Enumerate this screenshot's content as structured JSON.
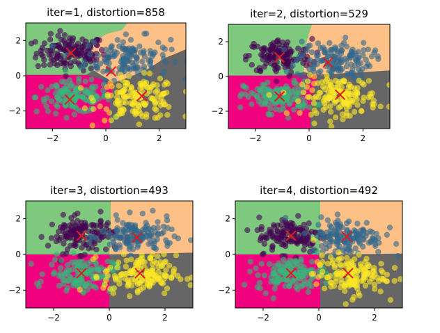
{
  "region_colors": {
    "green": "#7fc97f",
    "orange": "#fdc086",
    "magenta": "#f0027f",
    "gray": "#666666"
  },
  "cluster_colors": [
    "#440154",
    "#31688e",
    "#35b779",
    "#fde725"
  ],
  "centroid_color": "#e31a1c",
  "chart_data": [
    {
      "type": "scatter",
      "title": "iter=1, distortion=858",
      "xlim": [
        -3,
        3
      ],
      "ylim": [
        -3,
        3
      ],
      "xticks": [
        -2,
        0,
        2
      ],
      "yticks": [
        -2,
        0,
        2
      ],
      "centroids": [
        [
          -1.3,
          1.3
        ],
        [
          0.2,
          0.25
        ],
        [
          -1.35,
          -1.35
        ],
        [
          1.35,
          -1.15
        ]
      ],
      "boundaries": {
        "green_orange": [
          [
            0.8,
            3
          ],
          [
            0.6,
            2.6
          ],
          [
            0.05,
            2.4
          ],
          [
            -0.4,
            2.0
          ],
          [
            -0.55,
            1.4
          ],
          [
            -0.5,
            0.6
          ],
          [
            -0.45,
            0.3
          ],
          [
            -0.75,
            0.05
          ],
          [
            -3,
            0.05
          ]
        ],
        "orange_gray": [
          [
            -0.45,
            0.3
          ],
          [
            0.3,
            -0.4
          ],
          [
            1.5,
            0.3
          ],
          [
            2.2,
            1.0
          ],
          [
            3,
            1.5
          ]
        ],
        "magenta_gray": [
          [
            -3,
            0.05
          ],
          [
            -0.75,
            0.05
          ],
          [
            0.3,
            -0.4
          ],
          [
            0.15,
            -1.6
          ],
          [
            0.15,
            -3
          ]
        ]
      },
      "clusters": [
        {
          "color": 0,
          "center": [
            -1.3,
            1.3
          ],
          "spread": [
            0.65,
            0.5
          ],
          "n": 130
        },
        {
          "color": 1,
          "center": [
            0.8,
            1.0
          ],
          "spread": [
            0.8,
            0.6
          ],
          "n": 140
        },
        {
          "color": 2,
          "center": [
            -1.2,
            -1.2
          ],
          "spread": [
            0.7,
            0.45
          ],
          "n": 130
        },
        {
          "color": 3,
          "center": [
            1.2,
            -1.3
          ],
          "spread": [
            0.75,
            0.6
          ],
          "n": 150
        }
      ]
    },
    {
      "type": "scatter",
      "title": "iter=2, distortion=529",
      "xlim": [
        -3,
        3
      ],
      "ylim": [
        -3,
        3
      ],
      "xticks": [
        -2,
        0,
        2
      ],
      "yticks": [
        -2,
        0,
        2
      ],
      "centroids": [
        [
          -1.1,
          1.1
        ],
        [
          0.7,
          0.8
        ],
        [
          -1.1,
          -1.15
        ],
        [
          1.15,
          -1.05
        ]
      ],
      "boundaries": {
        "green_orange": [
          [
            0.1,
            3
          ],
          [
            -0.1,
            2.0
          ],
          [
            -0.15,
            1.0
          ],
          [
            -0.2,
            0.25
          ],
          [
            -0.9,
            0.05
          ],
          [
            -3,
            0.05
          ]
        ],
        "orange_gray": [
          [
            -0.2,
            0.25
          ],
          [
            0.3,
            0.1
          ],
          [
            1.5,
            0.2
          ],
          [
            3,
            0.35
          ]
        ],
        "magenta_gray": [
          [
            -3,
            0.05
          ],
          [
            -0.9,
            0.05
          ],
          [
            0.3,
            0.1
          ],
          [
            0.05,
            -1.6
          ],
          [
            0.05,
            -3
          ]
        ]
      },
      "clusters": [
        {
          "color": 0,
          "center": [
            -1.1,
            1.15
          ],
          "spread": [
            0.6,
            0.5
          ],
          "n": 130
        },
        {
          "color": 1,
          "center": [
            0.9,
            0.95
          ],
          "spread": [
            0.7,
            0.55
          ],
          "n": 140
        },
        {
          "color": 2,
          "center": [
            -1.1,
            -1.2
          ],
          "spread": [
            0.65,
            0.45
          ],
          "n": 130
        },
        {
          "color": 3,
          "center": [
            1.15,
            -1.15
          ],
          "spread": [
            0.7,
            0.55
          ],
          "n": 150
        }
      ]
    },
    {
      "type": "scatter",
      "title": "iter=3, distortion=493",
      "xlim": [
        -3,
        3
      ],
      "ylim": [
        -3,
        3
      ],
      "xticks": [
        -2,
        0,
        2
      ],
      "yticks": [
        -2,
        0,
        2
      ],
      "centroids": [
        [
          -1.0,
          1.05
        ],
        [
          1.0,
          0.95
        ],
        [
          -1.0,
          -1.05
        ],
        [
          1.1,
          -1.05
        ]
      ],
      "boundaries": {
        "green_orange": [
          [
            0.05,
            3
          ],
          [
            0.05,
            1.0
          ],
          [
            0.0,
            0.0
          ],
          [
            -3,
            0.0
          ]
        ],
        "orange_gray": [
          [
            0.0,
            0.0
          ],
          [
            1.5,
            0.05
          ],
          [
            3,
            0.1
          ]
        ],
        "magenta_gray": [
          [
            -3,
            0.0
          ],
          [
            0.0,
            0.0
          ],
          [
            0.0,
            -1.5
          ],
          [
            0.0,
            -3
          ]
        ]
      },
      "clusters": [
        {
          "color": 0,
          "center": [
            -1.0,
            1.1
          ],
          "spread": [
            0.6,
            0.5
          ],
          "n": 130
        },
        {
          "color": 1,
          "center": [
            1.0,
            1.0
          ],
          "spread": [
            0.65,
            0.5
          ],
          "n": 140
        },
        {
          "color": 2,
          "center": [
            -1.0,
            -1.1
          ],
          "spread": [
            0.6,
            0.45
          ],
          "n": 130
        },
        {
          "color": 3,
          "center": [
            1.1,
            -1.15
          ],
          "spread": [
            0.65,
            0.55
          ],
          "n": 150
        }
      ]
    },
    {
      "type": "scatter",
      "title": "iter=4, distortion=492",
      "xlim": [
        -3,
        3
      ],
      "ylim": [
        -3,
        3
      ],
      "xticks": [
        -2,
        0,
        2
      ],
      "yticks": [
        -2,
        0,
        2
      ],
      "centroids": [
        [
          -1.0,
          1.05
        ],
        [
          1.0,
          1.0
        ],
        [
          -1.0,
          -1.05
        ],
        [
          1.05,
          -1.05
        ]
      ],
      "boundaries": {
        "green_orange": [
          [
            0.05,
            3
          ],
          [
            0.05,
            1.0
          ],
          [
            0.0,
            0.0
          ],
          [
            -3,
            0.0
          ]
        ],
        "orange_gray": [
          [
            0.0,
            0.0
          ],
          [
            1.5,
            0.02
          ],
          [
            3,
            0.05
          ]
        ],
        "magenta_gray": [
          [
            -3,
            0.0
          ],
          [
            0.0,
            0.0
          ],
          [
            0.05,
            -1.5
          ],
          [
            0.05,
            -3
          ]
        ]
      },
      "clusters": [
        {
          "color": 0,
          "center": [
            -1.0,
            1.1
          ],
          "spread": [
            0.6,
            0.5
          ],
          "n": 130
        },
        {
          "color": 1,
          "center": [
            1.0,
            1.0
          ],
          "spread": [
            0.65,
            0.5
          ],
          "n": 140
        },
        {
          "color": 2,
          "center": [
            -1.0,
            -1.1
          ],
          "spread": [
            0.6,
            0.45
          ],
          "n": 130
        },
        {
          "color": 3,
          "center": [
            1.1,
            -1.15
          ],
          "spread": [
            0.65,
            0.55
          ],
          "n": 150
        }
      ]
    }
  ]
}
